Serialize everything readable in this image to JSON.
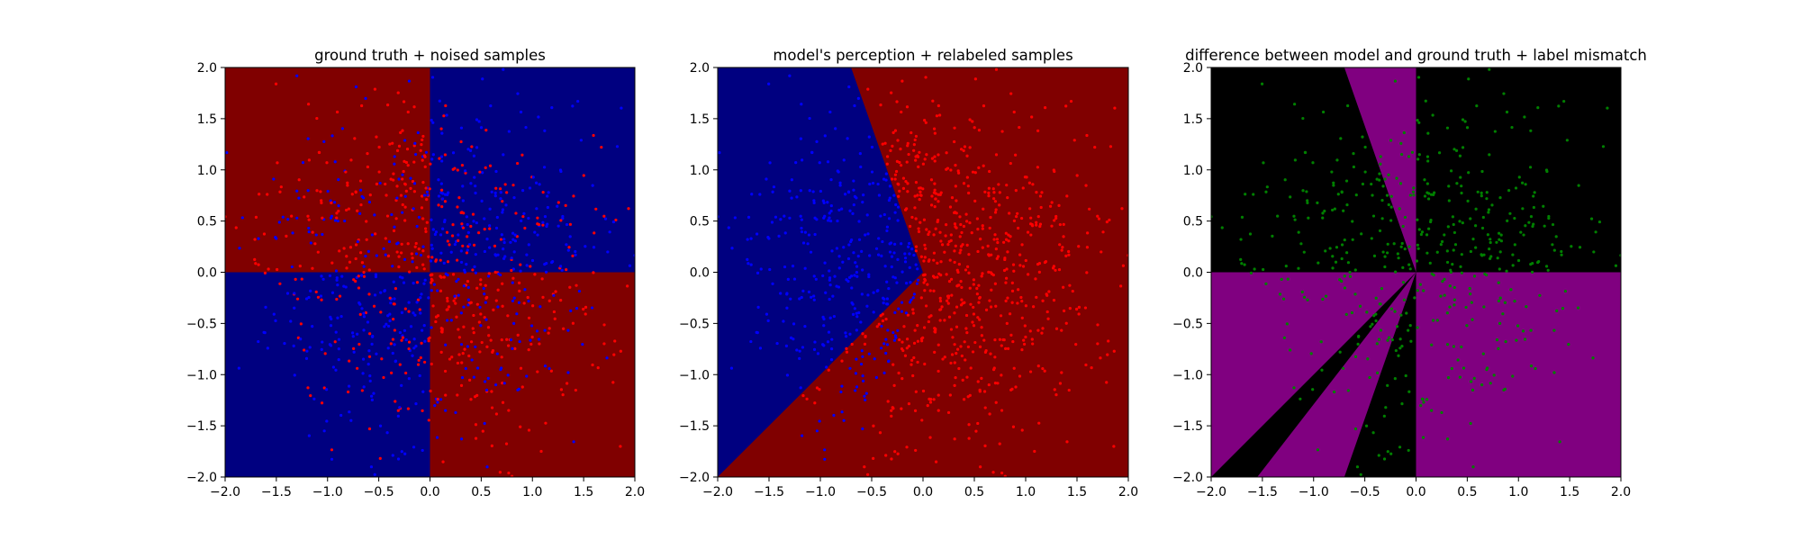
{
  "chart_data": [
    {
      "type": "scatter",
      "title": "ground truth + noised samples",
      "xlim": [
        -2.0,
        2.0
      ],
      "ylim": [
        -2.0,
        2.0
      ],
      "xticks": [
        "−2.0",
        "−1.5",
        "−1.0",
        "−0.5",
        "0.0",
        "0.5",
        "1.0",
        "1.5",
        "2.0"
      ],
      "yticks": [
        "−2.0",
        "−1.5",
        "−1.0",
        "−0.5",
        "0.0",
        "0.5",
        "1.0",
        "1.5",
        "2.0"
      ],
      "xtick_values": [
        -2.0,
        -1.5,
        -1.0,
        -0.5,
        0.0,
        0.5,
        1.0,
        1.5,
        2.0
      ],
      "ytick_values": [
        -2.0,
        -1.5,
        -1.0,
        -0.5,
        0.0,
        0.5,
        1.0,
        1.5,
        2.0
      ],
      "background_regions": [
        {
          "color": "#800000",
          "polygon": [
            [
              -2,
              0
            ],
            [
              0,
              0
            ],
            [
              0,
              2
            ],
            [
              -2,
              2
            ]
          ]
        },
        {
          "color": "#000080",
          "polygon": [
            [
              0,
              0
            ],
            [
              2,
              0
            ],
            [
              2,
              2
            ],
            [
              0,
              2
            ]
          ]
        },
        {
          "color": "#000080",
          "polygon": [
            [
              -2,
              -2
            ],
            [
              0,
              -2
            ],
            [
              0,
              0
            ],
            [
              -2,
              0
            ]
          ]
        },
        {
          "color": "#800000",
          "polygon": [
            [
              0,
              -2
            ],
            [
              2,
              -2
            ],
            [
              2,
              0
            ],
            [
              0,
              0
            ]
          ]
        }
      ],
      "point_colors": [
        "#ff0000",
        "#0000ff"
      ],
      "point_rule": "noisy_xor",
      "n_points": 1000,
      "seed": 11
    },
    {
      "type": "scatter",
      "title": "model's perception + relabeled samples",
      "xlim": [
        -2.0,
        2.0
      ],
      "ylim": [
        -2.0,
        2.0
      ],
      "xticks": [
        "−2.0",
        "−1.5",
        "−1.0",
        "−0.5",
        "0.0",
        "0.5",
        "1.0",
        "1.5",
        "2.0"
      ],
      "yticks": [
        "−2.0",
        "−1.5",
        "−1.0",
        "−0.5",
        "0.0",
        "0.5",
        "1.0",
        "1.5",
        "2.0"
      ],
      "xtick_values": [
        -2.0,
        -1.5,
        -1.0,
        -0.5,
        0.0,
        0.5,
        1.0,
        1.5,
        2.0
      ],
      "ytick_values": [
        -2.0,
        -1.5,
        -1.0,
        -0.5,
        0.0,
        0.5,
        1.0,
        1.5,
        2.0
      ],
      "background_regions": [
        {
          "color": "#800000",
          "polygon": [
            [
              -2,
              -2
            ],
            [
              2,
              -2
            ],
            [
              2,
              2
            ],
            [
              -2,
              2
            ]
          ]
        },
        {
          "color": "#000080",
          "polygon": [
            [
              -2,
              -2
            ],
            [
              -2,
              2
            ],
            [
              -0.7,
              2
            ],
            [
              0,
              0
            ]
          ]
        },
        {
          "color": "#800000",
          "polygon": [
            [
              0,
              0
            ],
            [
              -2,
              -2
            ],
            [
              -1.55,
              -2
            ]
          ]
        },
        {
          "color": "#800000",
          "polygon": [
            [
              0,
              0
            ],
            [
              -0.7,
              -2
            ],
            [
              2,
              -2
            ],
            [
              2,
              2
            ],
            [
              -0.7,
              2
            ]
          ]
        }
      ],
      "point_colors": [
        "#ff0000",
        "#0000ff"
      ],
      "point_rule": "model_prediction",
      "n_points": 1000,
      "seed": 11
    },
    {
      "type": "scatter",
      "title": "difference between model and ground truth + label mismatch",
      "xlim": [
        -2.0,
        2.0
      ],
      "ylim": [
        -2.0,
        2.0
      ],
      "xticks": [
        "−2.0",
        "−1.5",
        "−1.0",
        "−0.5",
        "0.0",
        "0.5",
        "1.0",
        "1.5",
        "2.0"
      ],
      "yticks": [
        "−2.0",
        "−1.5",
        "−1.0",
        "−0.5",
        "0.0",
        "0.5",
        "1.0",
        "1.5",
        "2.0"
      ],
      "xtick_values": [
        -2.0,
        -1.5,
        -1.0,
        -0.5,
        0.0,
        0.5,
        1.0,
        1.5,
        2.0
      ],
      "ytick_values": [
        -2.0,
        -1.5,
        -1.0,
        -0.5,
        0.0,
        0.5,
        1.0,
        1.5,
        2.0
      ],
      "background_regions": [
        {
          "color": "#000000",
          "polygon": [
            [
              -2,
              -2
            ],
            [
              2,
              -2
            ],
            [
              2,
              2
            ],
            [
              -2,
              2
            ]
          ]
        },
        {
          "color": "#800080",
          "polygon": [
            [
              0,
              0
            ],
            [
              -0.7,
              2
            ],
            [
              0,
              2
            ]
          ]
        },
        {
          "color": "#800080",
          "polygon": [
            [
              -2,
              0
            ],
            [
              0,
              0
            ],
            [
              -2,
              -2
            ]
          ]
        },
        {
          "color": "#800080",
          "polygon": [
            [
              0,
              0
            ],
            [
              -1.55,
              -2
            ],
            [
              -0.7,
              -2
            ]
          ]
        },
        {
          "color": "#800080",
          "polygon": [
            [
              0,
              0
            ],
            [
              0,
              -2
            ],
            [
              2,
              -2
            ],
            [
              2,
              0
            ]
          ]
        }
      ],
      "point_colors": [
        "#008000"
      ],
      "point_rule": "mismatch_only",
      "n_points": 1000,
      "seed": 11
    }
  ]
}
